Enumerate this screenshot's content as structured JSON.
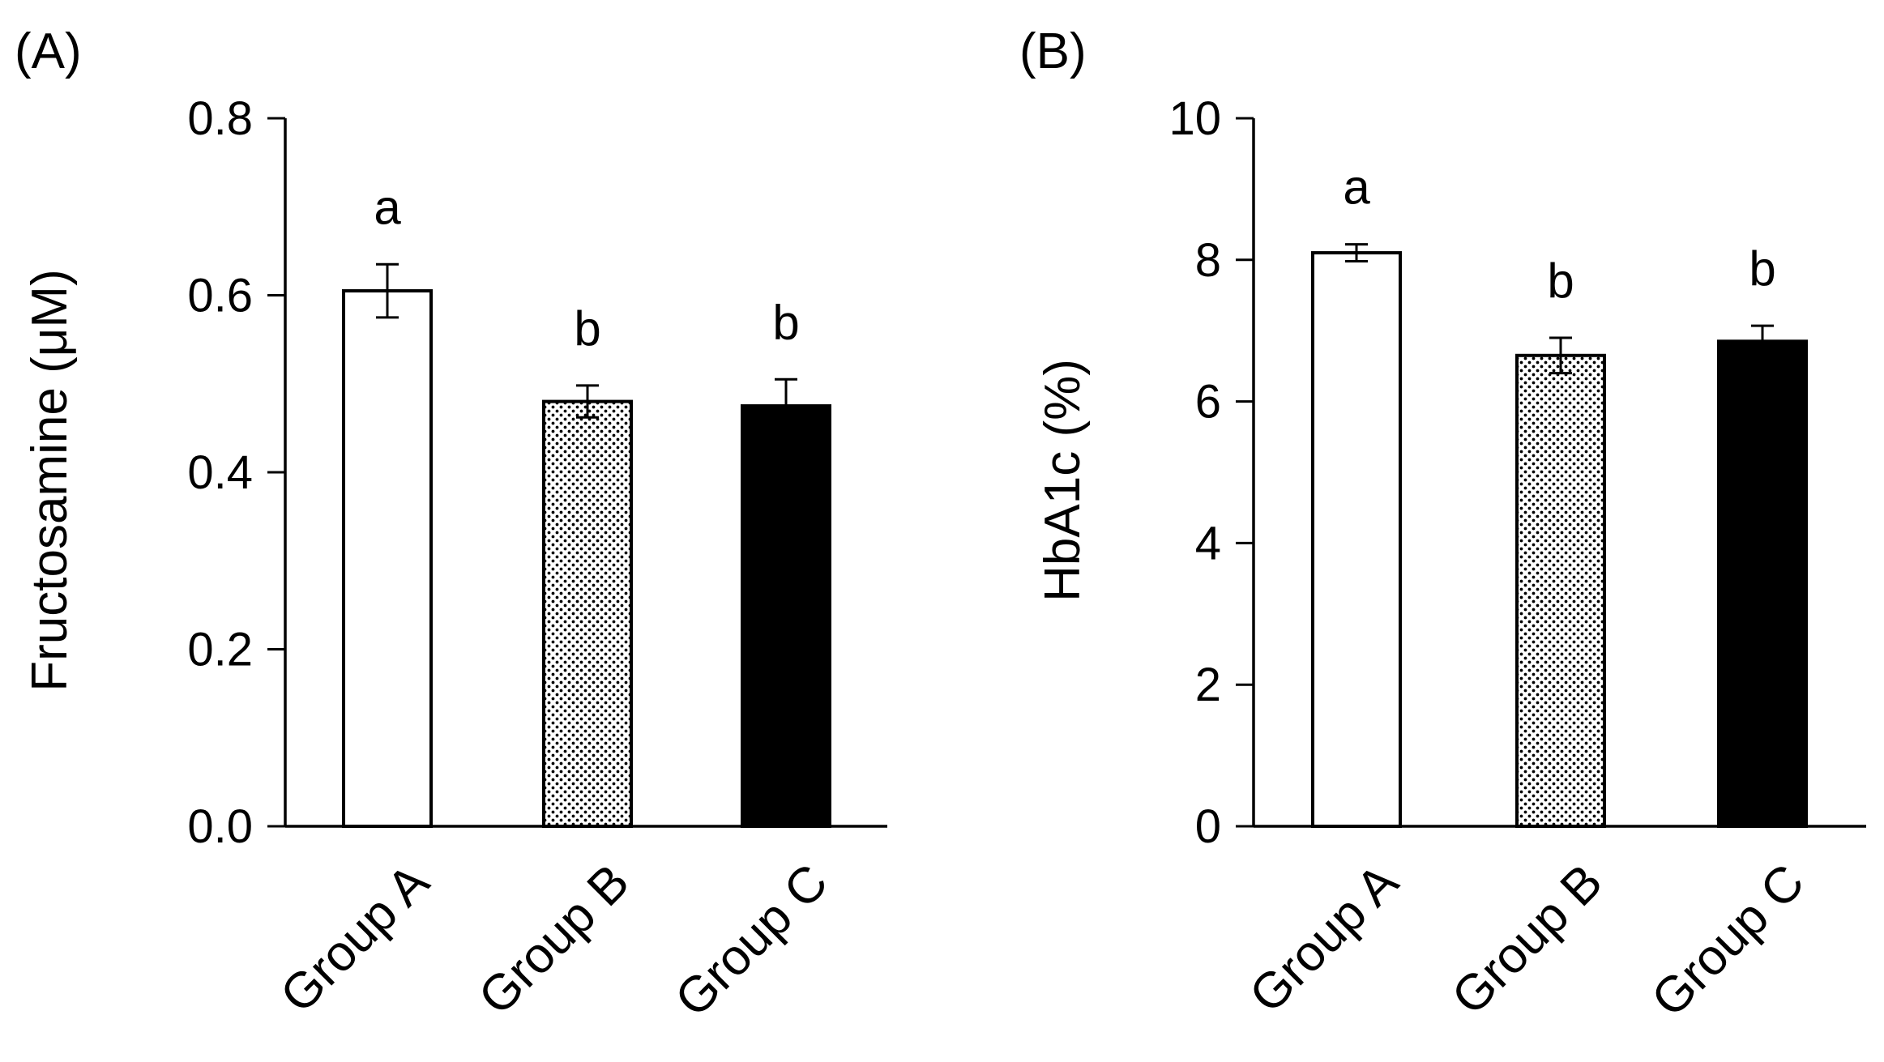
{
  "chart_data": [
    {
      "type": "bar",
      "panel_label": "(A)",
      "categories": [
        "Group A",
        "Group B",
        "Group C"
      ],
      "values": [
        0.605,
        0.48,
        0.475
      ],
      "errors": [
        0.03,
        0.018,
        0.03
      ],
      "significance": [
        "a",
        "b",
        "b"
      ],
      "bar_fills": [
        "white",
        "dotted",
        "black"
      ],
      "ylabel": "Fructosamine (μM)",
      "ylim": [
        0,
        0.8
      ],
      "yticks": [
        0.0,
        0.2,
        0.4,
        0.6,
        0.8
      ],
      "ytick_labels": [
        "0.0",
        "0.2",
        "0.4",
        "0.6",
        "0.8"
      ],
      "grid": false,
      "legend": "none"
    },
    {
      "type": "bar",
      "panel_label": "(B)",
      "categories": [
        "Group A",
        "Group B",
        "Group C"
      ],
      "values": [
        8.1,
        6.65,
        6.85
      ],
      "errors": [
        0.12,
        0.25,
        0.22
      ],
      "significance": [
        "a",
        "b",
        "b"
      ],
      "bar_fills": [
        "white",
        "dotted",
        "black"
      ],
      "ylabel": "HbA1c (%)",
      "ylim": [
        0,
        10
      ],
      "yticks": [
        0,
        2,
        4,
        6,
        8,
        10
      ],
      "ytick_labels": [
        "0",
        "2",
        "4",
        "6",
        "8",
        "10"
      ],
      "grid": false,
      "legend": "none"
    }
  ]
}
